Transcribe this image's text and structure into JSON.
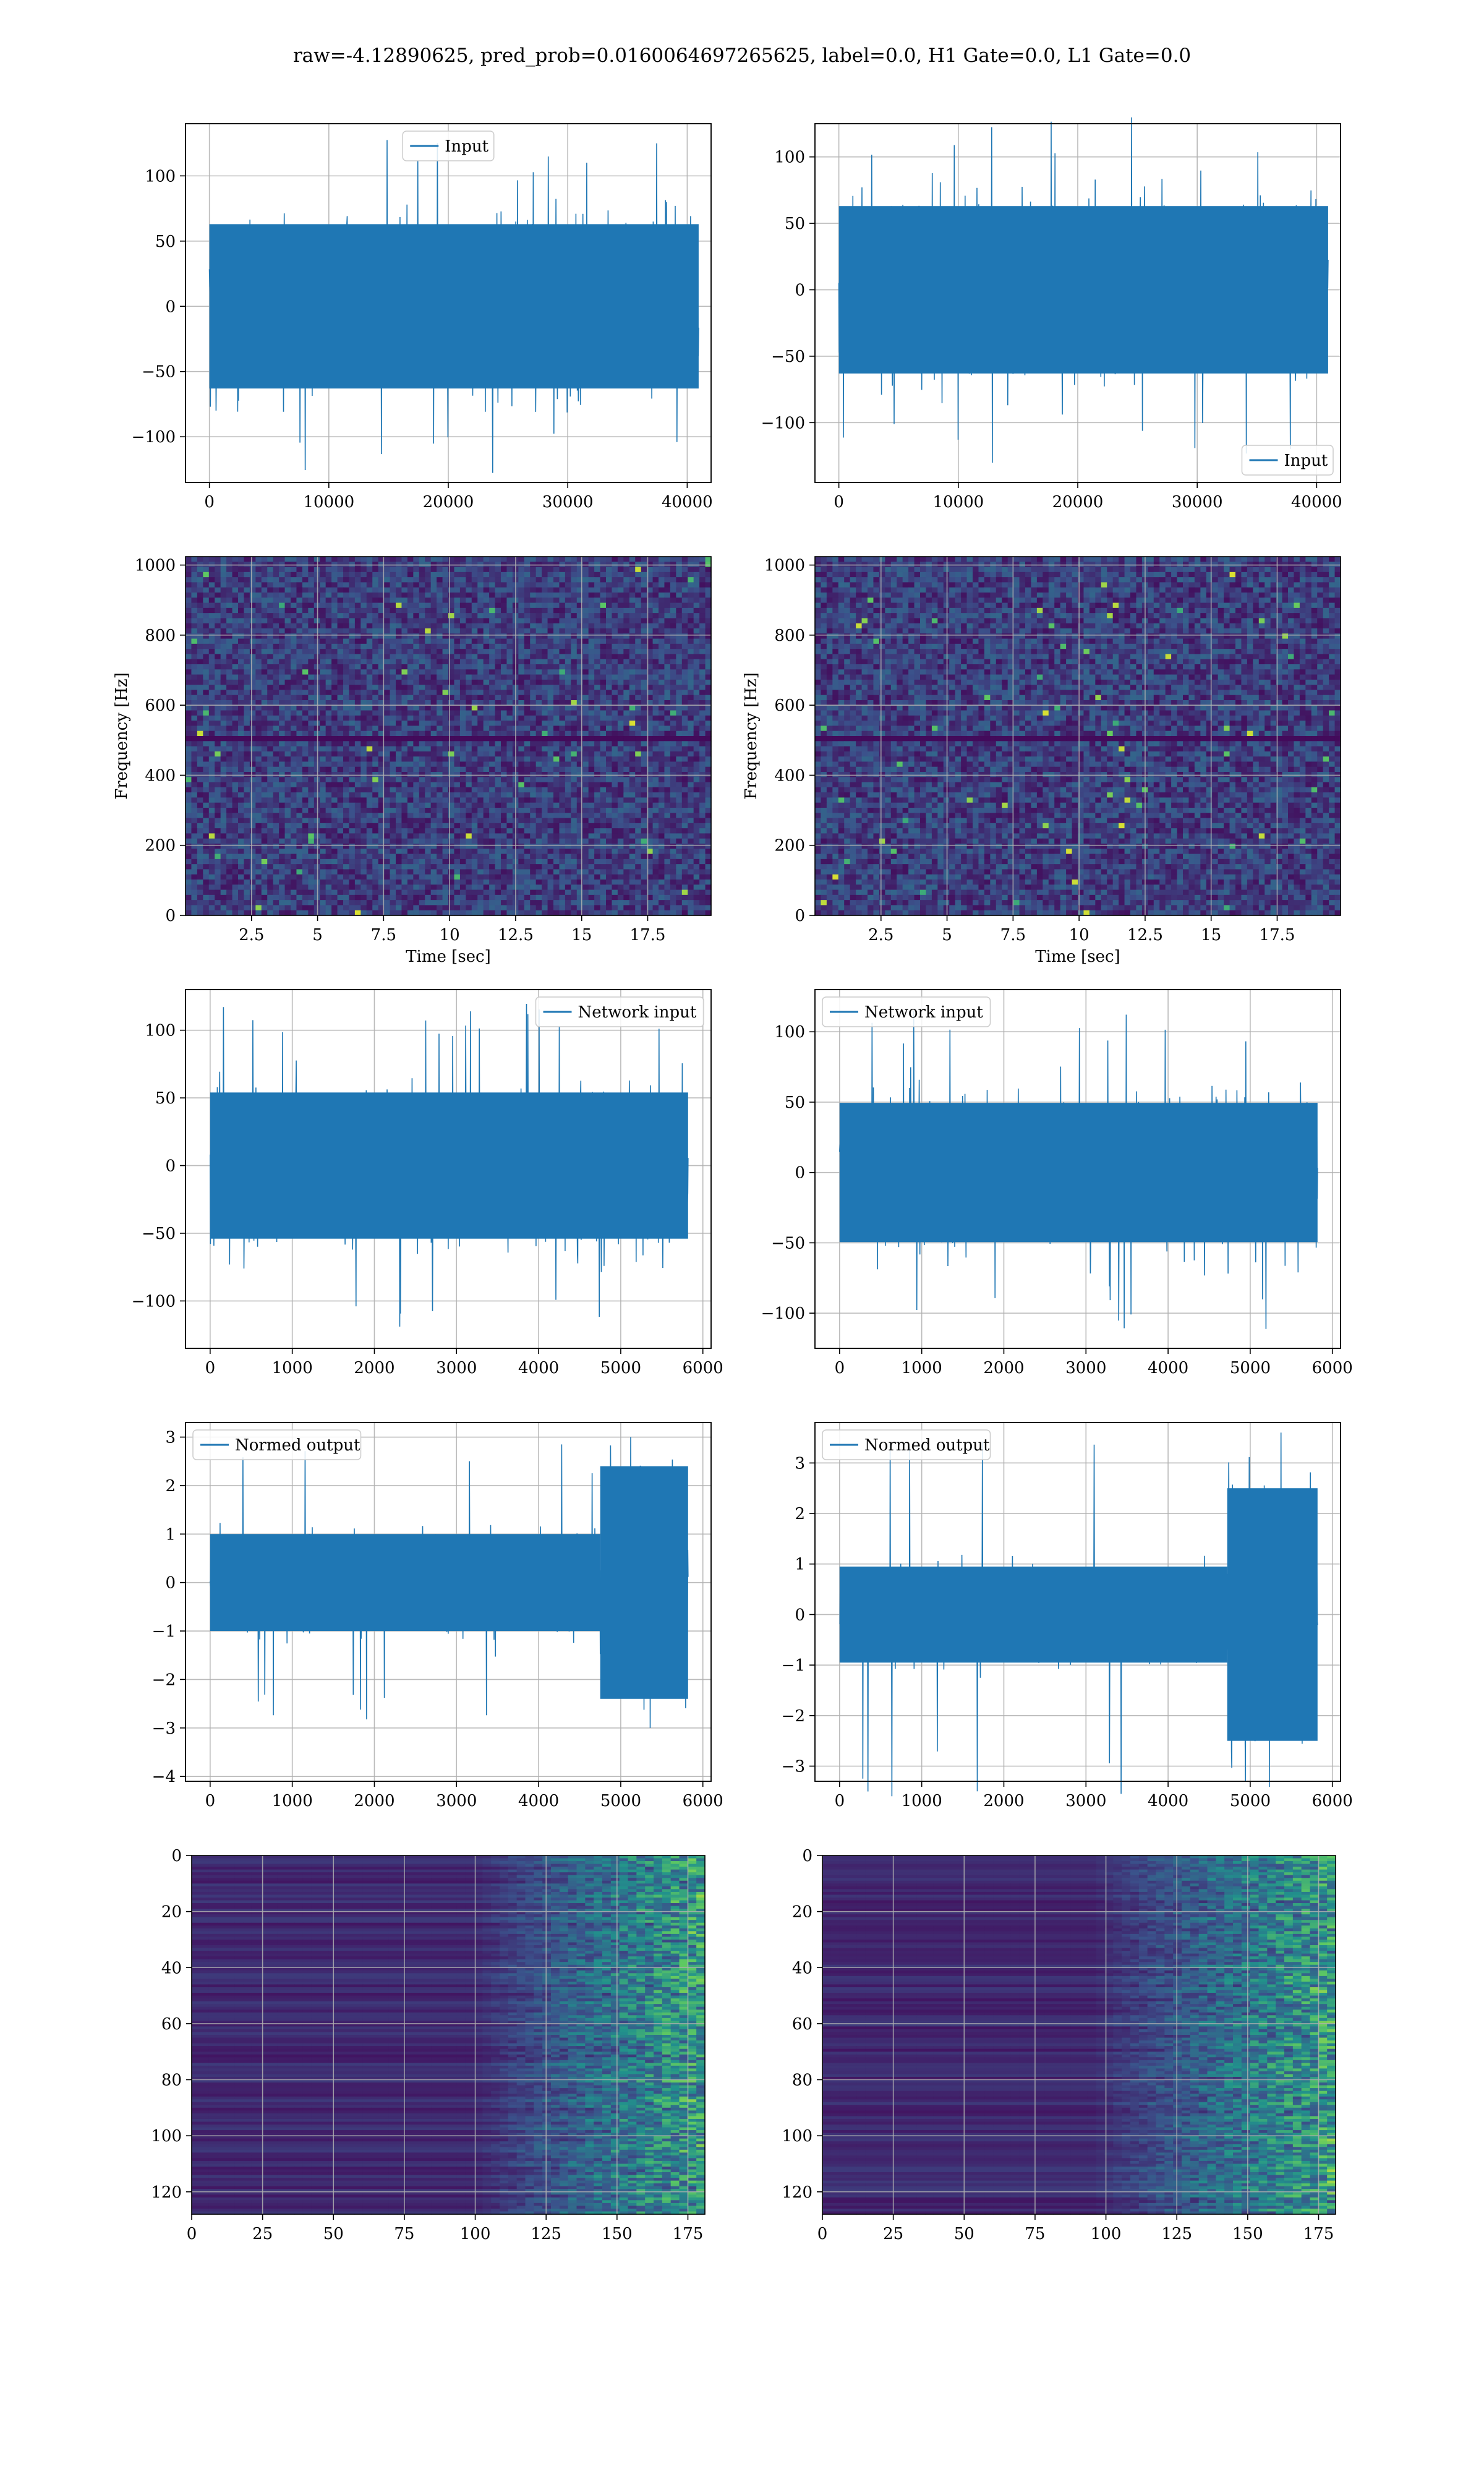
{
  "title": "raw=-4.12890625, pred_prob=0.0160064697265625, label=0.0, H1 Gate=0.0, L1 Gate=0.0",
  "colors": {
    "line": "#1f77b4",
    "grid": "#b0b0b0",
    "viridis_low": "#440154",
    "viridis_mid": "#21918c",
    "viridis_high": "#fde725"
  },
  "chart_data": [
    {
      "id": "h1-input",
      "type": "line",
      "xlim": [
        -2000,
        42000
      ],
      "ylim": [
        -135,
        140
      ],
      "xticks": [
        0,
        10000,
        20000,
        30000,
        40000
      ],
      "yticks": [
        -100,
        -50,
        0,
        50,
        100
      ],
      "series": [
        {
          "name": "Input",
          "x_range": [
            0,
            40960
          ],
          "amplitude_typical": 70,
          "amplitude_peak": 128
        }
      ],
      "legend": "upper center",
      "grid": true,
      "xlabel": "",
      "ylabel": ""
    },
    {
      "id": "l1-input",
      "type": "line",
      "xlim": [
        -2000,
        42000
      ],
      "ylim": [
        -145,
        125
      ],
      "xticks": [
        0,
        10000,
        20000,
        30000,
        40000
      ],
      "yticks": [
        -100,
        -50,
        0,
        50,
        100
      ],
      "series": [
        {
          "name": "Input",
          "x_range": [
            0,
            40960
          ],
          "amplitude_typical": 70,
          "amplitude_peak": 132
        }
      ],
      "legend": "lower right",
      "grid": true,
      "xlabel": "",
      "ylabel": ""
    },
    {
      "id": "h1-spectrogram",
      "type": "heatmap",
      "xlim": [
        0,
        19.9
      ],
      "ylim": [
        0,
        1024
      ],
      "xticks": [
        2.5,
        5.0,
        7.5,
        10.0,
        12.5,
        15.0,
        17.5
      ],
      "yticks": [
        0,
        200,
        400,
        600,
        800,
        1000
      ],
      "xlabel": "Time [sec]",
      "ylabel": "Frequency [Hz]",
      "colormap": "viridis",
      "grid": true
    },
    {
      "id": "l1-spectrogram",
      "type": "heatmap",
      "xlim": [
        0,
        19.9
      ],
      "ylim": [
        0,
        1024
      ],
      "xticks": [
        2.5,
        5.0,
        7.5,
        10.0,
        12.5,
        15.0,
        17.5
      ],
      "yticks": [
        0,
        200,
        400,
        600,
        800,
        1000
      ],
      "xlabel": "Time [sec]",
      "ylabel": "Frequency [Hz]",
      "colormap": "viridis",
      "grid": true
    },
    {
      "id": "h1-network-input",
      "type": "line",
      "xlim": [
        -300,
        6100
      ],
      "ylim": [
        -135,
        130
      ],
      "xticks": [
        0,
        1000,
        2000,
        3000,
        4000,
        5000,
        6000
      ],
      "yticks": [
        -100,
        -50,
        0,
        50,
        100
      ],
      "series": [
        {
          "name": "Network input",
          "x_range": [
            0,
            5820
          ],
          "amplitude_typical": 60,
          "amplitude_peak": 120
        }
      ],
      "legend": "upper right",
      "grid": true,
      "xlabel": "",
      "ylabel": ""
    },
    {
      "id": "l1-network-input",
      "type": "line",
      "xlim": [
        -300,
        6100
      ],
      "ylim": [
        -125,
        130
      ],
      "xticks": [
        0,
        1000,
        2000,
        3000,
        4000,
        5000,
        6000
      ],
      "yticks": [
        -100,
        -50,
        0,
        50,
        100
      ],
      "series": [
        {
          "name": "Network input",
          "x_range": [
            0,
            5820
          ],
          "amplitude_typical": 55,
          "amplitude_peak": 115
        }
      ],
      "legend": "upper left",
      "grid": true,
      "xlabel": "",
      "ylabel": ""
    },
    {
      "id": "h1-normed-output",
      "type": "line",
      "xlim": [
        -300,
        6100
      ],
      "ylim": [
        -4.1,
        3.3
      ],
      "xticks": [
        0,
        1000,
        2000,
        3000,
        4000,
        5000,
        6000
      ],
      "yticks": [
        -4,
        -3,
        -2,
        -1,
        0,
        1,
        2,
        3
      ],
      "series": [
        {
          "name": "Normed output",
          "x_range": [
            0,
            5820
          ],
          "amplitude_typical": 1.0,
          "amplitude_peak": 3.0,
          "burst_start": 4750,
          "burst_amplitude": 2.4
        }
      ],
      "legend": "upper left",
      "grid": true,
      "xlabel": "",
      "ylabel": ""
    },
    {
      "id": "l1-normed-output",
      "type": "line",
      "xlim": [
        -300,
        6100
      ],
      "ylim": [
        -3.3,
        3.8
      ],
      "xticks": [
        0,
        1000,
        2000,
        3000,
        4000,
        5000,
        6000
      ],
      "yticks": [
        -3,
        -2,
        -1,
        0,
        1,
        2,
        3
      ],
      "series": [
        {
          "name": "Normed output",
          "x_range": [
            0,
            5820
          ],
          "amplitude_typical": 0.95,
          "amplitude_peak": 3.6,
          "burst_start": 4720,
          "burst_amplitude": 2.5
        }
      ],
      "legend": "upper left",
      "grid": true,
      "xlabel": "",
      "ylabel": ""
    },
    {
      "id": "h1-features",
      "type": "heatmap",
      "xlim": [
        0,
        181
      ],
      "ylim": [
        128,
        0
      ],
      "xticks": [
        0,
        25,
        50,
        75,
        100,
        125,
        150,
        175
      ],
      "yticks": [
        0,
        20,
        40,
        60,
        80,
        100,
        120
      ],
      "colormap": "viridis",
      "grid": true,
      "activity_onset": 100
    },
    {
      "id": "l1-features",
      "type": "heatmap",
      "xlim": [
        0,
        181
      ],
      "ylim": [
        128,
        0
      ],
      "xticks": [
        0,
        25,
        50,
        75,
        100,
        125,
        150,
        175
      ],
      "yticks": [
        0,
        20,
        40,
        60,
        80,
        100,
        120
      ],
      "colormap": "viridis",
      "grid": true,
      "activity_onset": 95
    }
  ]
}
